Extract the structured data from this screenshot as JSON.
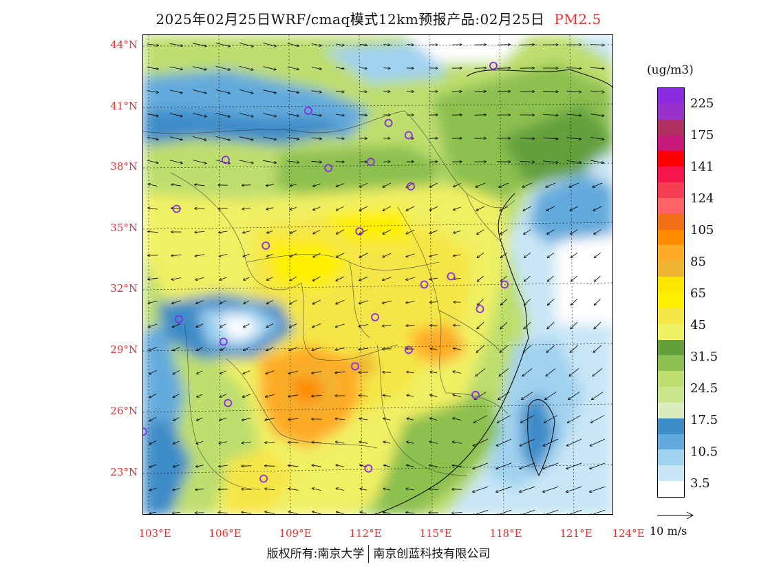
{
  "title": {
    "text": "2025年02月25日WRF/cmaq模式12km预报产品:02月25日",
    "pollutant": "PM2.5"
  },
  "map": {
    "lat_labels": [
      "44°N",
      "41°N",
      "38°N",
      "35°N",
      "32°N",
      "29°N",
      "26°N",
      "23°N"
    ],
    "lon_labels": [
      "103°E",
      "106°E",
      "109°E",
      "112°E",
      "115°E",
      "118°E",
      "121°E",
      "124°E"
    ],
    "lon_range": [
      102.9,
      124
    ],
    "lat_range": [
      21,
      44.5
    ]
  },
  "legend": {
    "unit": "(ug/m3)",
    "labels": [
      "225",
      "175",
      "141",
      "124",
      "105",
      "85",
      "65",
      "45",
      "31.5",
      "24.5",
      "17.5",
      "10.5",
      "3.5"
    ],
    "colors": [
      "#8a2be2",
      "#9932cc",
      "#b03060",
      "#c8187d",
      "#ff0000",
      "#f5164f",
      "#f53c50",
      "#ff6464",
      "#f06e14",
      "#ff8c00",
      "#ffaa28",
      "#f0b432",
      "#ffe600",
      "#fff000",
      "#f5e646",
      "#f0f064",
      "#64a03c",
      "#8cc050",
      "#bede6e",
      "#c8e68c",
      "#dcebc0",
      "#3c8cc8",
      "#64aadc",
      "#a0d2f0",
      "#c8e6f5",
      "#ffffff"
    ]
  },
  "wind_reference": {
    "label": "10 m/s"
  },
  "cities": [
    {
      "lon": 118.6,
      "lat": 43.0
    },
    {
      "lon": 110.3,
      "lat": 40.8
    },
    {
      "lon": 113.9,
      "lat": 40.2
    },
    {
      "lon": 114.8,
      "lat": 39.6
    },
    {
      "lon": 106.6,
      "lat": 38.4
    },
    {
      "lon": 111.2,
      "lat": 38.0
    },
    {
      "lon": 113.1,
      "lat": 38.3
    },
    {
      "lon": 114.9,
      "lat": 37.1
    },
    {
      "lon": 104.4,
      "lat": 36.0
    },
    {
      "lon": 112.6,
      "lat": 34.9
    },
    {
      "lon": 108.4,
      "lat": 34.2
    },
    {
      "lon": 115.5,
      "lat": 32.3
    },
    {
      "lon": 116.7,
      "lat": 32.7
    },
    {
      "lon": 119.1,
      "lat": 32.3
    },
    {
      "lon": 118.0,
      "lat": 31.1
    },
    {
      "lon": 104.5,
      "lat": 30.6
    },
    {
      "lon": 106.5,
      "lat": 29.5
    },
    {
      "lon": 113.3,
      "lat": 30.7
    },
    {
      "lon": 114.8,
      "lat": 29.1
    },
    {
      "lon": 112.4,
      "lat": 28.3
    },
    {
      "lon": 106.7,
      "lat": 26.5
    },
    {
      "lon": 117.8,
      "lat": 26.9
    },
    {
      "lon": 102.9,
      "lat": 25.1
    },
    {
      "lon": 108.3,
      "lat": 22.8
    },
    {
      "lon": 113.0,
      "lat": 23.3
    }
  ],
  "copyright": {
    "left": "版权所有:南京大学",
    "right": "南京创蓝科技有限公司"
  }
}
